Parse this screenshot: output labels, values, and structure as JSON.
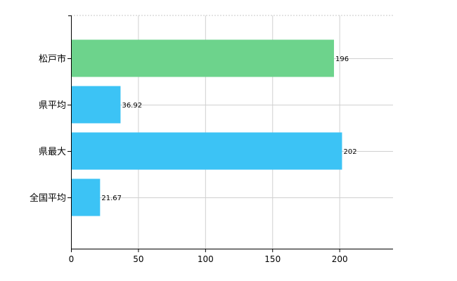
{
  "chart_data": {
    "type": "bar",
    "orientation": "horizontal",
    "categories": [
      "松戸市",
      "県平均",
      "県最大",
      "全国平均"
    ],
    "values": [
      196,
      36.92,
      202,
      21.67
    ],
    "data_labels": [
      "196",
      "36.92",
      "202",
      "21.67"
    ],
    "bar_colors": [
      "#6dd38c",
      "#3cc3f5",
      "#3cc3f5",
      "#3cc3f5"
    ],
    "xlim": [
      0,
      240
    ],
    "xticks": [
      0,
      50,
      100,
      150,
      200
    ],
    "xtick_labels": [
      "0",
      "50",
      "100",
      "150",
      "200"
    ],
    "grid": true,
    "title": "",
    "xlabel": "",
    "ylabel": ""
  }
}
